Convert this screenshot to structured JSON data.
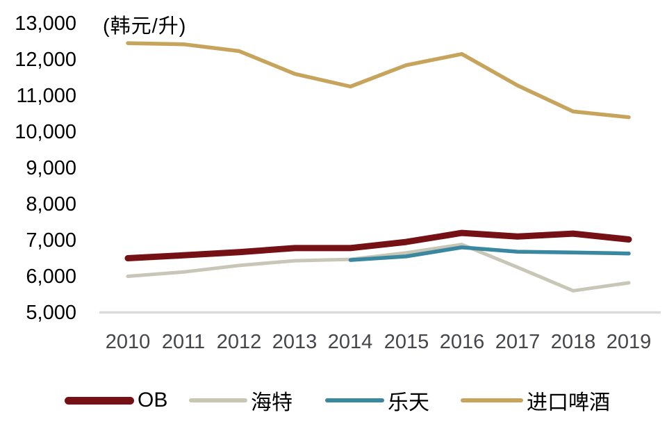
{
  "unit_label": "(韩元/升)",
  "chart_data": {
    "type": "line",
    "title": "",
    "unit": "(韩元/升)",
    "categories": [
      "2010",
      "2011",
      "2012",
      "2013",
      "2014",
      "2015",
      "2016",
      "2017",
      "2018",
      "2019"
    ],
    "series": [
      {
        "name": "OB",
        "color": "#751114",
        "stroke_width": 9,
        "values": [
          6500,
          6580,
          6670,
          6780,
          6780,
          6950,
          7200,
          7100,
          7180,
          7020
        ]
      },
      {
        "name": "海特",
        "color": "#C8C6B6",
        "stroke_width": 5,
        "values": [
          6000,
          6120,
          6300,
          6430,
          6470,
          6650,
          6880,
          6250,
          5600,
          5820
        ]
      },
      {
        "name": "乐天",
        "color": "#3A87A0",
        "stroke_width": 5.5,
        "values": [
          null,
          null,
          null,
          null,
          6450,
          6550,
          6800,
          6680,
          6660,
          6630
        ]
      },
      {
        "name": "进口啤酒",
        "color": "#C7A45C",
        "stroke_width": 5.5,
        "values": [
          12450,
          12420,
          12230,
          11600,
          11250,
          11840,
          12150,
          11280,
          10560,
          10400
        ]
      }
    ],
    "y_ticks": {
      "values": [
        13000,
        12000,
        11000,
        10000,
        9000,
        8000,
        7000,
        6000,
        5000
      ],
      "labels": [
        "13,000",
        "12,000",
        "11,000",
        "10,000",
        "9,000",
        "8,000",
        "7,000",
        "6,000",
        "5,000"
      ]
    },
    "ylim": [
      5000,
      13000
    ],
    "grid": "baseline-only",
    "axis_color": "#D9D9D9",
    "legend_position": "bottom"
  }
}
